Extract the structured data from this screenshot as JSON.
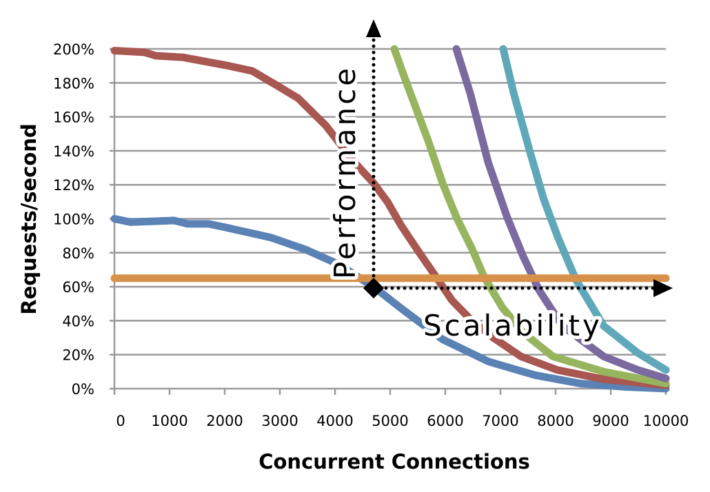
{
  "chart_data": {
    "type": "line",
    "title": "",
    "xlabel": "Concurrent Connections",
    "ylabel": "Requests/second",
    "xlim": [
      0,
      10000
    ],
    "ylim": [
      0,
      200
    ],
    "x_ticks": [
      "0",
      "1000",
      "2000",
      "3000",
      "4000",
      "5000",
      "6000",
      "7000",
      "8000",
      "9000",
      "10000"
    ],
    "y_ticks": [
      "0%",
      "20%",
      "40%",
      "60%",
      "80%",
      "100%",
      "120%",
      "140%",
      "160%",
      "180%",
      "200%"
    ],
    "grid": "horizontal",
    "series": [
      {
        "name": "blue",
        "color": "#5b82b5",
        "points": [
          [
            0,
            100
          ],
          [
            290,
            98
          ],
          [
            1080,
            99
          ],
          [
            1330,
            97
          ],
          [
            1710,
            97
          ],
          [
            2000,
            95
          ],
          [
            2830,
            89
          ],
          [
            3460,
            82
          ],
          [
            4080,
            73
          ],
          [
            4500,
            64
          ],
          [
            4700,
            60
          ],
          [
            5170,
            48
          ],
          [
            5950,
            29
          ],
          [
            6780,
            16
          ],
          [
            7620,
            8
          ],
          [
            8450,
            3
          ],
          [
            9280,
            1
          ],
          [
            10000,
            0
          ]
        ]
      },
      {
        "name": "red",
        "color": "#a85751",
        "points": [
          [
            0,
            199
          ],
          [
            540,
            198
          ],
          [
            750,
            196
          ],
          [
            1250,
            195
          ],
          [
            2080,
            190
          ],
          [
            2500,
            187
          ],
          [
            2920,
            179
          ],
          [
            3330,
            171
          ],
          [
            3830,
            155
          ],
          [
            4330,
            134
          ],
          [
            4700,
            121
          ],
          [
            4950,
            110
          ],
          [
            5200,
            96
          ],
          [
            5530,
            80
          ],
          [
            5870,
            64
          ],
          [
            6120,
            52
          ],
          [
            6450,
            41
          ],
          [
            6870,
            30
          ],
          [
            7370,
            19
          ],
          [
            8030,
            11
          ],
          [
            8870,
            5.5
          ],
          [
            10000,
            2
          ]
        ]
      },
      {
        "name": "green",
        "color": "#97b45f",
        "points": [
          [
            5075,
            200
          ],
          [
            5240,
            185
          ],
          [
            5700,
            145
          ],
          [
            5950,
            121
          ],
          [
            6200,
            101
          ],
          [
            6490,
            82
          ],
          [
            6700,
            66
          ],
          [
            7030,
            48
          ],
          [
            7410,
            33
          ],
          [
            7950,
            19
          ],
          [
            8870,
            10
          ],
          [
            10000,
            3
          ]
        ]
      },
      {
        "name": "purple",
        "color": "#7a6a9f",
        "points": [
          [
            6200,
            200
          ],
          [
            6450,
            174
          ],
          [
            6780,
            133
          ],
          [
            7120,
            101
          ],
          [
            7410,
            78
          ],
          [
            7700,
            58
          ],
          [
            8120,
            37
          ],
          [
            8870,
            19
          ],
          [
            9490,
            11
          ],
          [
            10000,
            6
          ]
        ]
      },
      {
        "name": "teal",
        "color": "#5fa8ba",
        "points": [
          [
            7050,
            200
          ],
          [
            7240,
            174
          ],
          [
            7530,
            140
          ],
          [
            7780,
            112
          ],
          [
            8030,
            90
          ],
          [
            8370,
            64
          ],
          [
            8870,
            37
          ],
          [
            9490,
            21
          ],
          [
            10000,
            11
          ]
        ]
      },
      {
        "name": "orange",
        "color": "#d8914a",
        "points": [
          [
            0,
            65
          ],
          [
            10000,
            65
          ]
        ]
      }
    ],
    "annotations": {
      "marker": {
        "x": 4700,
        "y": 60
      },
      "performance_label": "Performance",
      "scalability_label": "Scalability"
    }
  }
}
